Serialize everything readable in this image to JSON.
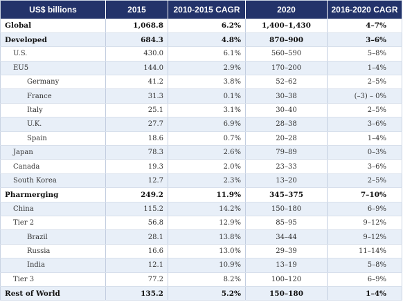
{
  "table": {
    "headers": [
      "US$ billions",
      "2015",
      "2010-2015 CAGR",
      "2020",
      "2016-2020 CAGR"
    ],
    "rows": [
      {
        "label": "Global",
        "level": 0,
        "bold": true,
        "v2015": "1,068.8",
        "cagr1015": "6.2%",
        "v2020": "1,400–1,430",
        "cagr1620": "4–7%"
      },
      {
        "label": "Developed",
        "level": 0,
        "bold": true,
        "v2015": "684.3",
        "cagr1015": "4.8%",
        "v2020": "870–900",
        "cagr1620": "3–6%"
      },
      {
        "label": "U.S.",
        "level": 1,
        "bold": false,
        "v2015": "430.0",
        "cagr1015": "6.1%",
        "v2020": "560–590",
        "cagr1620": "5–8%"
      },
      {
        "label": "EU5",
        "level": 1,
        "bold": false,
        "v2015": "144.0",
        "cagr1015": "2.9%",
        "v2020": "170–200",
        "cagr1620": "1–4%"
      },
      {
        "label": "Germany",
        "level": 2,
        "bold": false,
        "v2015": "41.2",
        "cagr1015": "3.8%",
        "v2020": "52–62",
        "cagr1620": "2–5%"
      },
      {
        "label": "France",
        "level": 2,
        "bold": false,
        "v2015": "31.3",
        "cagr1015": "0.1%",
        "v2020": "30–38",
        "cagr1620": "(–3) – 0%"
      },
      {
        "label": "Italy",
        "level": 2,
        "bold": false,
        "v2015": "25.1",
        "cagr1015": "3.1%",
        "v2020": "30–40",
        "cagr1620": "2–5%"
      },
      {
        "label": "U.K.",
        "level": 2,
        "bold": false,
        "v2015": "27.7",
        "cagr1015": "6.9%",
        "v2020": "28–38",
        "cagr1620": "3–6%"
      },
      {
        "label": "Spain",
        "level": 2,
        "bold": false,
        "v2015": "18.6",
        "cagr1015": "0.7%",
        "v2020": "20–28",
        "cagr1620": "1–4%"
      },
      {
        "label": "Japan",
        "level": 1,
        "bold": false,
        "v2015": "78.3",
        "cagr1015": "2.6%",
        "v2020": "79–89",
        "cagr1620": "0–3%"
      },
      {
        "label": "Canada",
        "level": 1,
        "bold": false,
        "v2015": "19.3",
        "cagr1015": "2.0%",
        "v2020": "23–33",
        "cagr1620": "3–6%"
      },
      {
        "label": "South Korea",
        "level": 1,
        "bold": false,
        "v2015": "12.7",
        "cagr1015": "2.3%",
        "v2020": "13–20",
        "cagr1620": "2–5%"
      },
      {
        "label": "Pharmerging",
        "level": 0,
        "bold": true,
        "v2015": "249.2",
        "cagr1015": "11.9%",
        "v2020": "345–375",
        "cagr1620": "7–10%"
      },
      {
        "label": "China",
        "level": 1,
        "bold": false,
        "v2015": "115.2",
        "cagr1015": "14.2%",
        "v2020": "150–180",
        "cagr1620": "6–9%"
      },
      {
        "label": "Tier 2",
        "level": 1,
        "bold": false,
        "v2015": "56.8",
        "cagr1015": "12.9%",
        "v2020": "85–95",
        "cagr1620": "9–12%"
      },
      {
        "label": "Brazil",
        "level": 2,
        "bold": false,
        "v2015": "28.1",
        "cagr1015": "13.8%",
        "v2020": "34–44",
        "cagr1620": "9–12%"
      },
      {
        "label": "Russia",
        "level": 2,
        "bold": false,
        "v2015": "16.6",
        "cagr1015": "13.0%",
        "v2020": "29–39",
        "cagr1620": "11–14%"
      },
      {
        "label": "India",
        "level": 2,
        "bold": false,
        "v2015": "12.1",
        "cagr1015": "10.9%",
        "v2020": "13–19",
        "cagr1620": "5–8%"
      },
      {
        "label": "Tier 3",
        "level": 1,
        "bold": false,
        "v2015": "77.2",
        "cagr1015": "8.2%",
        "v2020": "100–120",
        "cagr1620": "6–9%"
      },
      {
        "label": "Rest of World",
        "level": 0,
        "bold": true,
        "v2015": "135.2",
        "cagr1015": "5.2%",
        "v2020": "150–180",
        "cagr1620": "1–4%"
      }
    ]
  },
  "colors": {
    "header_bg": "#23336a",
    "header_text": "#ffffff",
    "row_alt_bg": "#e8eff8"
  }
}
